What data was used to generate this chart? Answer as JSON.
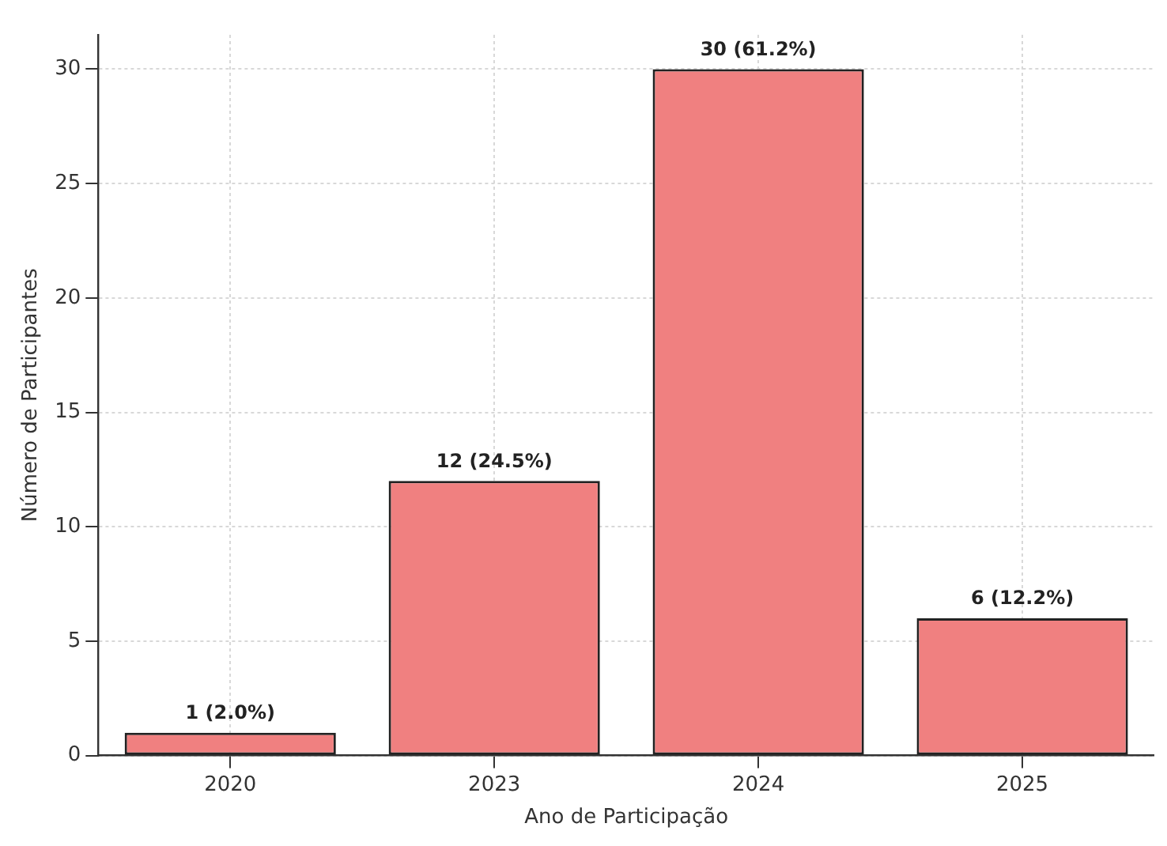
{
  "chart_data": {
    "type": "bar",
    "xlabel": "Ano de Participação",
    "ylabel": "Número de Participantes",
    "categories": [
      "2020",
      "2023",
      "2024",
      "2025"
    ],
    "values": [
      1,
      12,
      30,
      6
    ],
    "value_labels": [
      "1 (2.0%)",
      "12 (24.5%)",
      "30 (61.2%)",
      "6 (12.2%)"
    ],
    "color": "#f08080",
    "ylim": [
      0,
      31.5
    ],
    "yticks": [
      0,
      5,
      10,
      15,
      20,
      25,
      30
    ],
    "grid": true
  }
}
